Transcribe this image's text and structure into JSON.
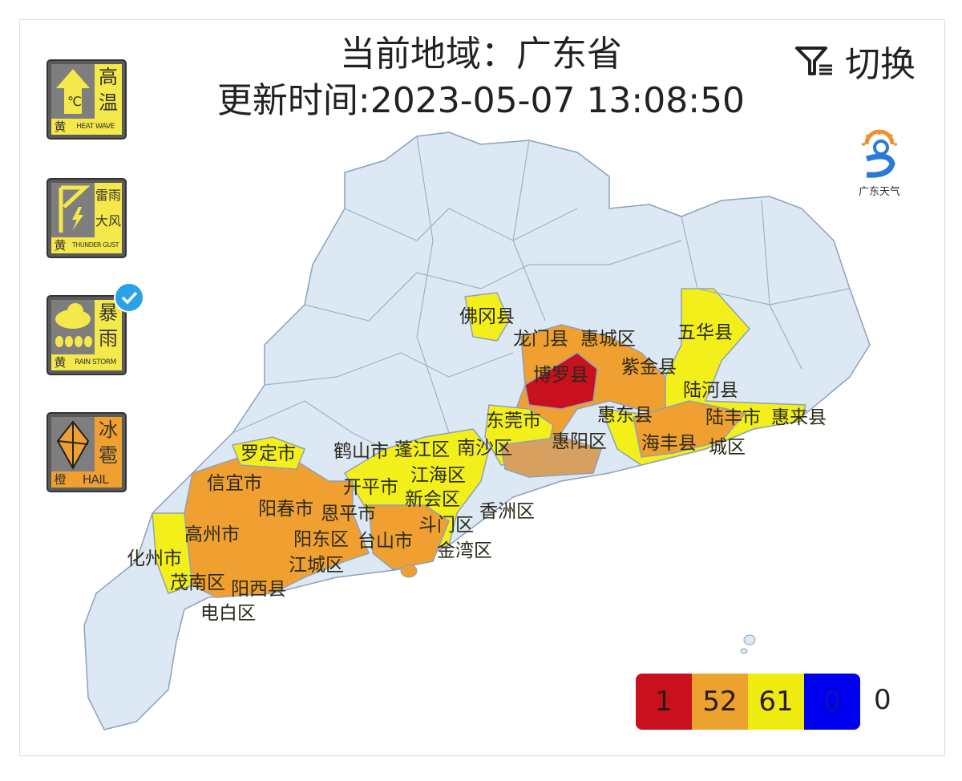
{
  "header": {
    "region_line": "当前地域：广东省",
    "update_line": "更新时间:2023-05-07 13:08:50",
    "switch_label": "切换",
    "switch_icon": "filter-list-icon"
  },
  "logo": {
    "text": "广东天气"
  },
  "warnings": [
    {
      "name": "高温",
      "level": "黄",
      "en": "HEAT WAVE",
      "color": "#f5e84a",
      "icon": "thermometer-arrow-icon",
      "selected": false
    },
    {
      "name": "雷雨大风",
      "level": "黄",
      "en": "THUNDER GUST",
      "color": "#f5e84a",
      "icon": "thunder-gust-icon",
      "selected": false
    },
    {
      "name": "暴雨",
      "level": "黄",
      "en": "RAIN STORM",
      "color": "#f5e84a",
      "icon": "rain-cloud-icon",
      "selected": true
    },
    {
      "name": "冰雹",
      "level": "橙",
      "en": "HAIL",
      "color": "#f0a030",
      "icon": "hail-icon",
      "selected": false
    }
  ],
  "map": {
    "colors": {
      "base": "#dde8f5",
      "red": "#c8101e",
      "orange": "#f0a030",
      "yellow": "#f2ef1a",
      "border": "#8fa0b8"
    },
    "labels": [
      "佛冈县",
      "龙门县",
      "惠城区",
      "博罗县",
      "紫金县",
      "五华县",
      "陆河县",
      "惠东县",
      "海丰县",
      "陆丰市",
      "惠来县",
      "城区",
      "东莞市",
      "惠阳区",
      "南沙区",
      "罗定市",
      "信宜市",
      "鹤山市",
      "蓬江区",
      "江海区",
      "新会区",
      "开平市",
      "恩平市",
      "阳春市",
      "斗门区",
      "香洲区",
      "高州市",
      "台山市",
      "金湾区",
      "阳东区",
      "化州市",
      "江城区",
      "茂南区",
      "阳西县",
      "电白区"
    ]
  },
  "legend": {
    "counts": [
      {
        "level": "red",
        "value": "1",
        "color": "#c8101e"
      },
      {
        "level": "orange",
        "value": "52",
        "color": "#eba22e"
      },
      {
        "level": "yellow",
        "value": "61",
        "color": "#eeeb10"
      },
      {
        "level": "blue",
        "value": "0",
        "color": "#0000f0"
      }
    ],
    "other": "0"
  }
}
